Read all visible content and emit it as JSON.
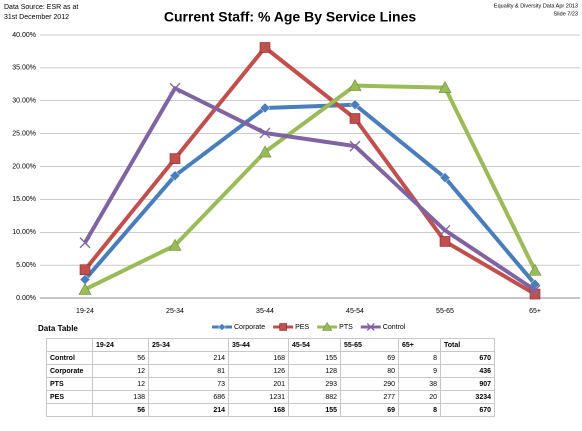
{
  "header": {
    "source_line1": "Data Source: ESR as at",
    "source_line2": "31st December 2012",
    "info_line1": "Equality & Diversity Data Apr 2013",
    "info_line2": "Slide 7/23"
  },
  "chart_data": {
    "type": "line",
    "title": "Current Staff: % Age By Service Lines",
    "categories": [
      "19-24",
      "25-34",
      "35-44",
      "45-54",
      "55-65",
      "65+"
    ],
    "series": [
      {
        "name": "Corporate",
        "color": "#4a7ebb",
        "marker": "diamond",
        "values": [
          2.8,
          18.6,
          28.9,
          29.4,
          18.3,
          2.1
        ]
      },
      {
        "name": "PES",
        "color": "#c0504d",
        "marker": "square",
        "values": [
          4.3,
          21.2,
          38.1,
          27.3,
          8.6,
          0.6
        ]
      },
      {
        "name": "PTS",
        "color": "#9bbb59",
        "marker": "triangle",
        "values": [
          1.3,
          8.0,
          22.2,
          32.3,
          32.0,
          4.2
        ]
      },
      {
        "name": "Control",
        "color": "#8064a2",
        "marker": "x",
        "values": [
          8.4,
          31.9,
          25.1,
          23.1,
          10.3,
          1.2
        ]
      }
    ],
    "ylim": [
      0,
      40
    ],
    "yticks": [
      {
        "value": 0,
        "label": "0.00%"
      },
      {
        "value": 5,
        "label": "5.00%"
      },
      {
        "value": 10,
        "label": "10.00%"
      },
      {
        "value": 15,
        "label": "15.00%"
      },
      {
        "value": 20,
        "label": "20.00%"
      },
      {
        "value": 25,
        "label": "25.00%"
      },
      {
        "value": 30,
        "label": "30.00%"
      },
      {
        "value": 35,
        "label": "35.00%"
      },
      {
        "value": 40,
        "label": "40.00%"
      }
    ],
    "grid": true,
    "legend": "bottom"
  },
  "table": {
    "title": "Data Table",
    "columns": [
      "19-24",
      "25-34",
      "35-44",
      "45-54",
      "55-65",
      "65+",
      "Total"
    ],
    "rows": [
      {
        "label": "Control",
        "values": [
          56,
          214,
          168,
          155,
          69,
          8,
          670
        ]
      },
      {
        "label": "Corporate",
        "values": [
          12,
          81,
          126,
          128,
          80,
          9,
          436
        ]
      },
      {
        "label": "PTS",
        "values": [
          12,
          73,
          201,
          293,
          290,
          38,
          907
        ]
      },
      {
        "label": "PES",
        "values": [
          138,
          686,
          1231,
          882,
          277,
          20,
          3234
        ]
      },
      {
        "values": [
          56,
          214,
          168,
          155,
          69,
          8,
          670
        ]
      }
    ]
  }
}
